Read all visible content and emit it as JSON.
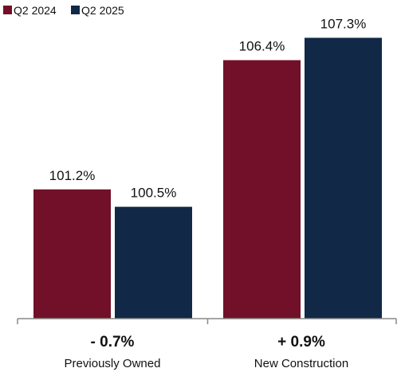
{
  "chart_data": {
    "type": "bar",
    "categories": [
      "Previously Owned",
      "New Construction"
    ],
    "category_changes": [
      "- 0.7%",
      "+ 0.9%"
    ],
    "series": [
      {
        "name": "Q2 2024",
        "values": [
          101.2,
          106.4
        ],
        "labels": [
          "101.2%",
          "106.4%"
        ],
        "color": "#731029"
      },
      {
        "name": "Q2 2025",
        "values": [
          100.5,
          107.3
        ],
        "labels": [
          "100.5%",
          "107.3%"
        ],
        "color": "#112947"
      }
    ],
    "title": "",
    "xlabel": "",
    "ylabel": "",
    "ylim": [
      96.0,
      108.5
    ],
    "grid": false,
    "legend_position": "top-left",
    "axis_color": "#888888"
  }
}
